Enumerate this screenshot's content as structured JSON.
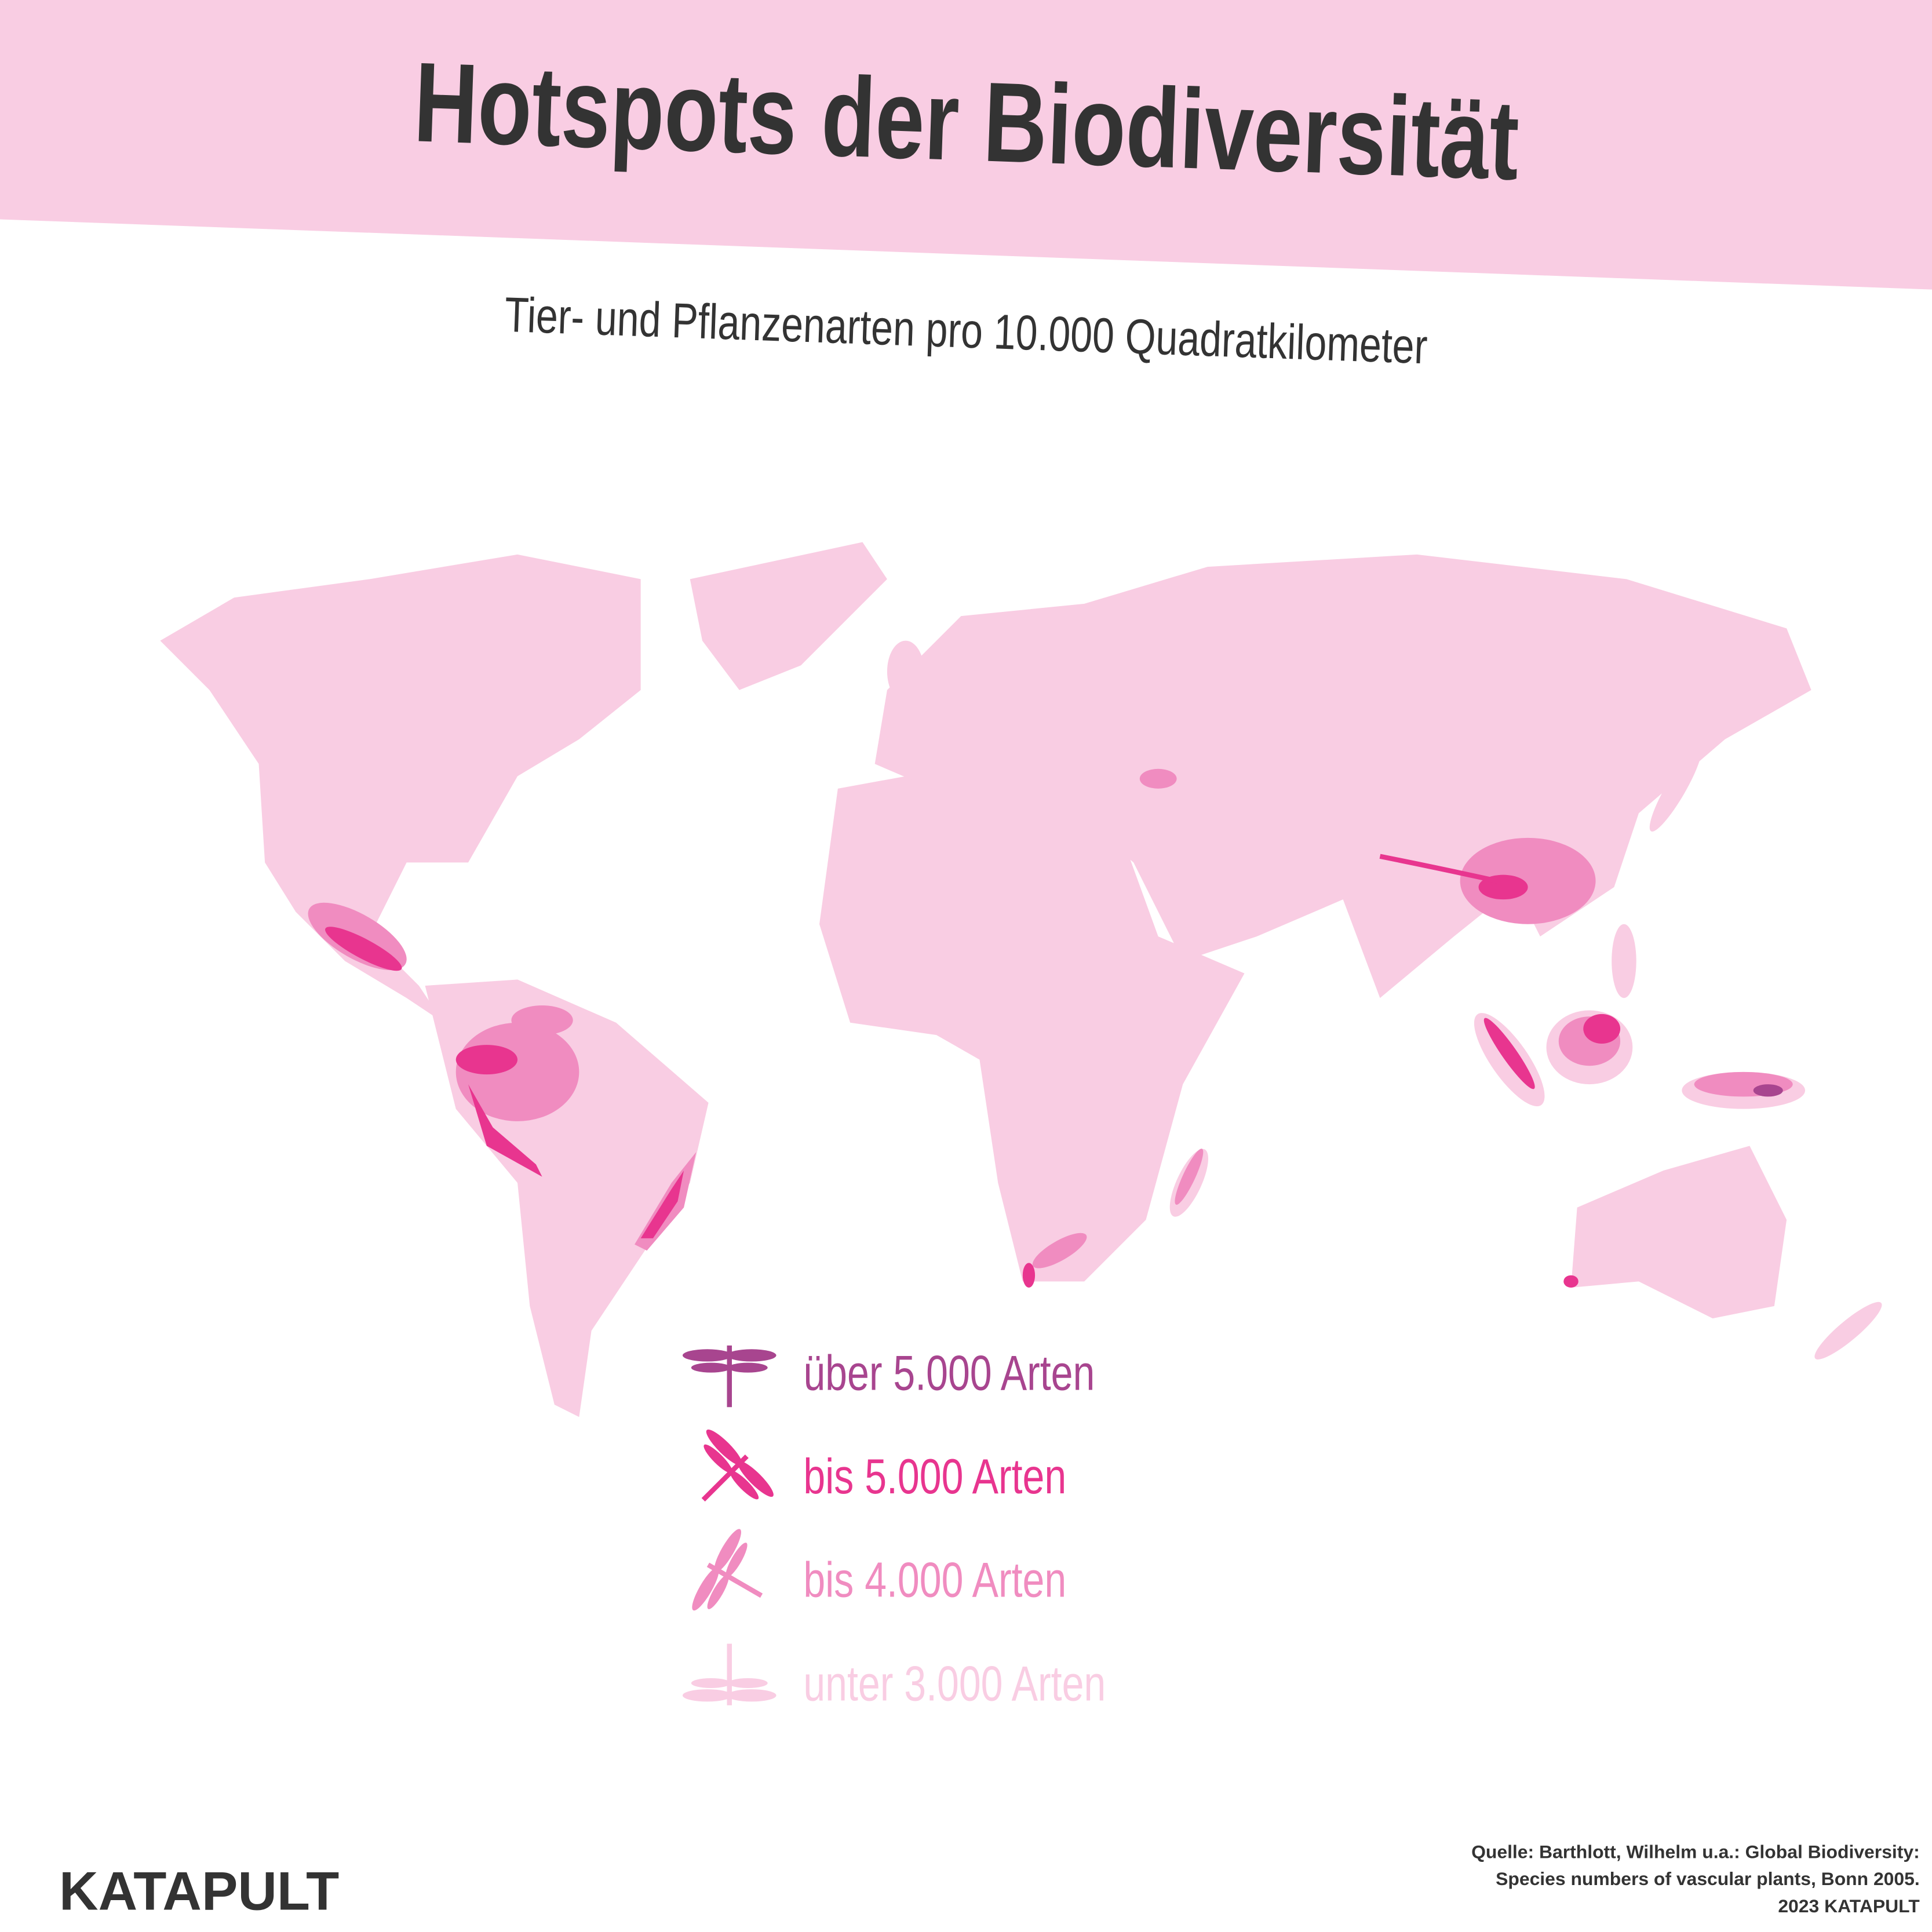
{
  "header": {
    "title": "Hotspots der Biodiversität",
    "subtitle": "Tier- und Pflanzenarten pro 10.000 Quadratkilometer"
  },
  "legend": {
    "items": [
      {
        "label": "über 5.000 Arten",
        "color": "#a8458f"
      },
      {
        "label": "bis 5.000 Arten",
        "color": "#e8358f"
      },
      {
        "label": "bis 4.000 Arten",
        "color": "#f08cc0"
      },
      {
        "label": "unter 3.000 Arten",
        "color": "#f9cde3"
      }
    ]
  },
  "footer": {
    "source": [
      "Quelle: Barthlott, Wilhelm u.a.: Global Biodiversity:",
      "Species numbers of vascular plants, Bonn 2005."
    ],
    "copyright": "2023 KATAPULT",
    "logo": "KATAPULT"
  }
}
